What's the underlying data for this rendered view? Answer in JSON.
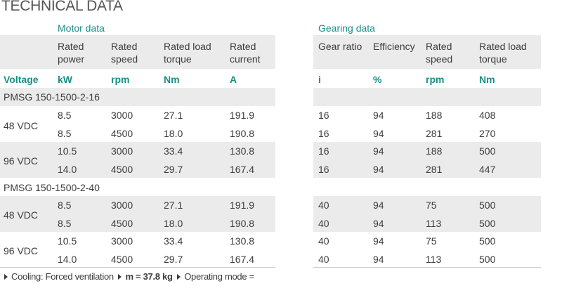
{
  "title": "TECHNICAL DATA",
  "motor": {
    "group_label": "Motor data",
    "headers": [
      "Rated\npower",
      "Rated\nspeed",
      "Rated load\ntorque",
      "Rated\ncurrent"
    ],
    "units": [
      "kW",
      "rpm",
      "Nm",
      "A"
    ]
  },
  "gearing": {
    "group_label": "Gearing data",
    "headers": [
      "Gear ratio",
      "Efficiency",
      "Rated\nspeed",
      "Rated load\ntorque"
    ],
    "units": [
      "i",
      "%",
      "rpm",
      "Nm"
    ]
  },
  "voltage_label": "Voltage",
  "sections": [
    {
      "name": "PMSG 150-1500-2-16",
      "groups": [
        {
          "voltage": "48 VDC",
          "rows": [
            {
              "motor": [
                "8.5",
                "3000",
                "27.1",
                "191.9"
              ],
              "gear": [
                "16",
                "94",
                "188",
                "408"
              ]
            },
            {
              "motor": [
                "8.5",
                "4500",
                "18.0",
                "190.8"
              ],
              "gear": [
                "16",
                "94",
                "281",
                "270"
              ]
            }
          ]
        },
        {
          "voltage": "96 VDC",
          "rows": [
            {
              "motor": [
                "10.5",
                "3000",
                "33.4",
                "130.8"
              ],
              "gear": [
                "16",
                "94",
                "188",
                "500"
              ]
            },
            {
              "motor": [
                "14.0",
                "4500",
                "29.7",
                "167.4"
              ],
              "gear": [
                "16",
                "94",
                "281",
                "447"
              ]
            }
          ]
        }
      ]
    },
    {
      "name": "PMSG 150-1500-2-40",
      "groups": [
        {
          "voltage": "48 VDC",
          "rows": [
            {
              "motor": [
                "8.5",
                "3000",
                "27.1",
                "191.9"
              ],
              "gear": [
                "40",
                "94",
                "75",
                "500"
              ]
            },
            {
              "motor": [
                "8.5",
                "4500",
                "18.0",
                "190.8"
              ],
              "gear": [
                "40",
                "94",
                "113",
                "500"
              ]
            }
          ]
        },
        {
          "voltage": "96 VDC",
          "rows": [
            {
              "motor": [
                "10.5",
                "3000",
                "33.4",
                "130.8"
              ],
              "gear": [
                "40",
                "94",
                "75",
                "500"
              ]
            },
            {
              "motor": [
                "14.0",
                "4500",
                "29.7",
                "167.4"
              ],
              "gear": [
                "40",
                "94",
                "113",
                "500"
              ]
            }
          ]
        }
      ]
    }
  ],
  "footer": {
    "cooling": "Cooling: Forced ventilation",
    "mass": "m = 37.8 kg",
    "mode": "Operating mode ="
  }
}
